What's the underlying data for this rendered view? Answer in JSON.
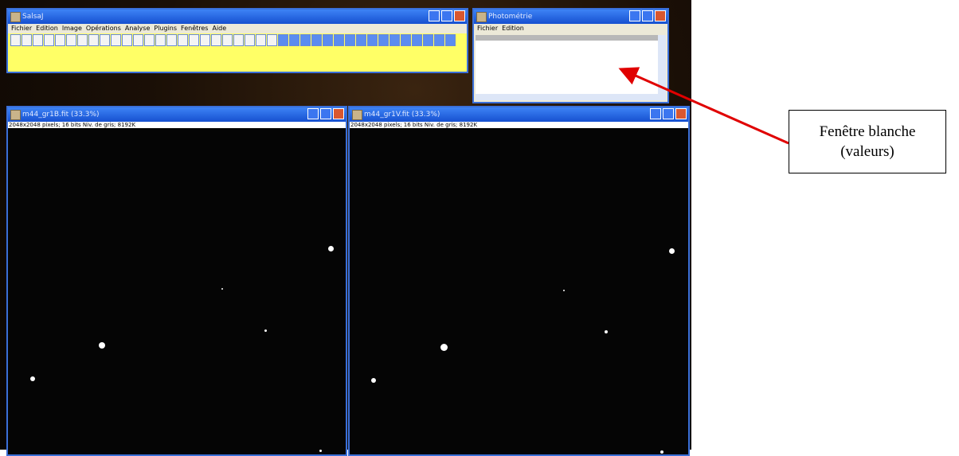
{
  "salsaj": {
    "title": "SalsaJ",
    "menu": [
      "Fichier",
      "Edition",
      "Image",
      "Opérations",
      "Analyse",
      "Plugins",
      "Fenêtres",
      "Aide"
    ]
  },
  "photometry": {
    "title": "Photométrie",
    "menu": [
      "Fichier",
      "Edition"
    ]
  },
  "images": [
    {
      "title": "m44_gr1B.fit (33.3%)",
      "info": "2048x2048 pixels; 16 bits Niv. de gris; 8192K"
    },
    {
      "title": "m44_gr1V.fit (33.3%)",
      "info": "2048x2048 pixels; 16 bits Niv. de gris; 8192K"
    }
  ],
  "callout": {
    "lines": [
      "Fenêtre blanche",
      "(valeurs)"
    ]
  }
}
